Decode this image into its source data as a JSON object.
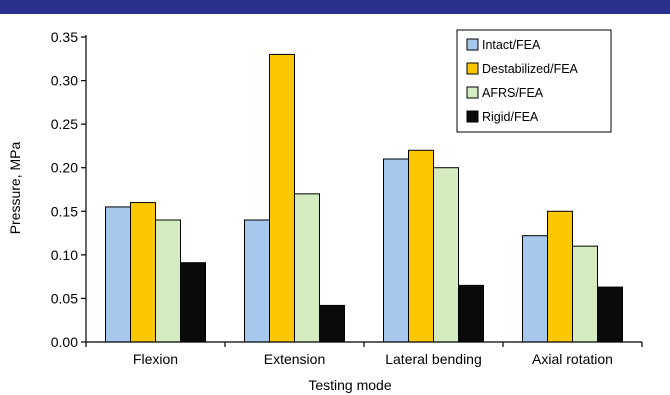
{
  "chart_data": {
    "type": "bar",
    "title": "",
    "xlabel": "Testing mode",
    "ylabel": "Pressure, MPa",
    "categories": [
      "Flexion",
      "Extension",
      "Lateral bending",
      "Axial rotation"
    ],
    "ylim": [
      0,
      0.35
    ],
    "yticks": [
      "0.00",
      "0.05",
      "0.10",
      "0.15",
      "0.20",
      "0.25",
      "0.30",
      "0.35"
    ],
    "legend_position": "top-right",
    "grid": false,
    "series": [
      {
        "name": "Intact/FEA",
        "color": "#a6c8ec",
        "values": [
          0.155,
          0.14,
          0.21,
          0.122
        ]
      },
      {
        "name": "Destabilized/FEA",
        "color": "#fbc800",
        "values": [
          0.16,
          0.33,
          0.22,
          0.15
        ]
      },
      {
        "name": "AFRS/FEA",
        "color": "#d4ecbf",
        "values": [
          0.14,
          0.17,
          0.2,
          0.11
        ]
      },
      {
        "name": "Rigid/FEA",
        "color": "#0a0a0a",
        "values": [
          0.091,
          0.042,
          0.065,
          0.063
        ]
      }
    ]
  },
  "colors": {
    "top_strip": "#2b2f8c",
    "bar_outline": "#000000"
  }
}
